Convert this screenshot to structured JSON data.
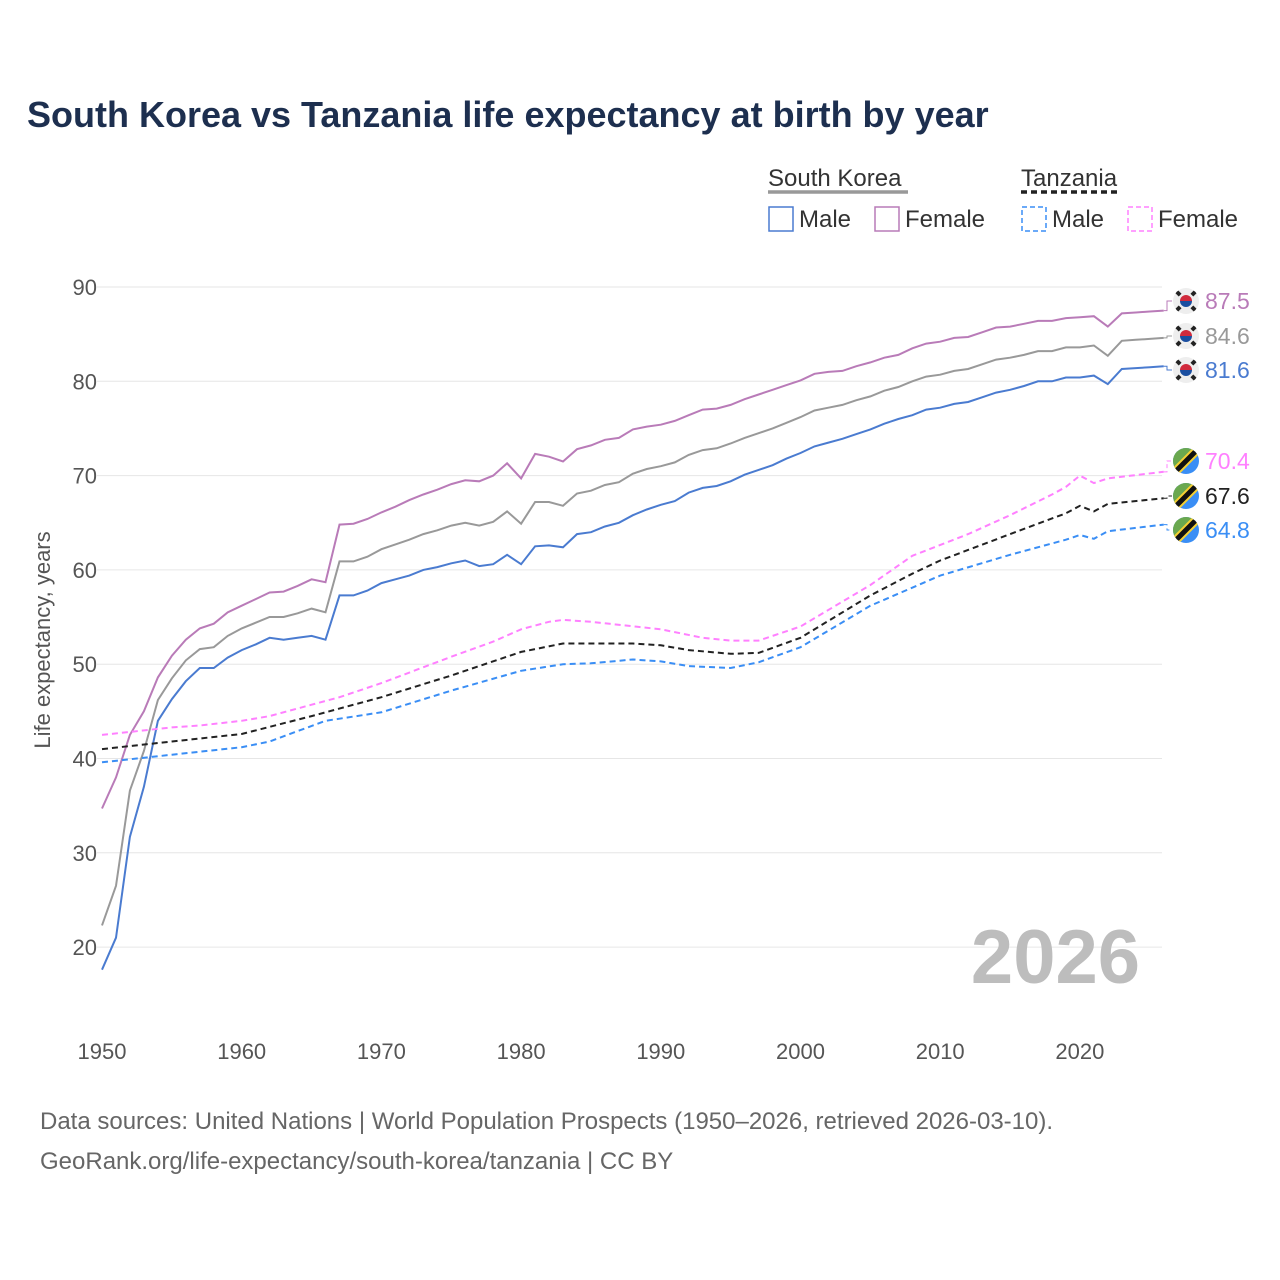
{
  "title": "South Korea vs Tanzania life expectancy at birth by year",
  "footer": {
    "line1": "Data sources: United Nations | World Population Prospects (1950–2026, retrieved 2026-03-10).",
    "line2": "GeoRank.org/life-expectancy/south-korea/tanzania | CC BY"
  },
  "legend": {
    "groups": [
      {
        "name": "South Korea",
        "line_color": "#999999",
        "dashed": false,
        "items": [
          {
            "label": "Male",
            "color": "#4a7bd0"
          },
          {
            "label": "Female",
            "color": "#b97bb8"
          }
        ]
      },
      {
        "name": "Tanzania",
        "line_color": "#222222",
        "dashed": true,
        "items": [
          {
            "label": "Male",
            "color": "#3a8ef5"
          },
          {
            "label": "Female",
            "color": "#ff80ff"
          }
        ]
      }
    ]
  },
  "watermark_year": "2026",
  "chart_data": {
    "type": "line",
    "title": "South Korea vs Tanzania life expectancy at birth by year",
    "xlabel": "",
    "ylabel": "Life expectancy, years",
    "xlim": [
      1950,
      2026
    ],
    "ylim": [
      20,
      90
    ],
    "xticks": [
      "1950",
      "1960",
      "1970",
      "1980",
      "1990",
      "2000",
      "2010",
      "2020"
    ],
    "yticks": [
      "20",
      "30",
      "40",
      "50",
      "60",
      "70",
      "80",
      "90"
    ],
    "grid": true,
    "legend_position": "top-right",
    "series": [
      {
        "name": "South Korea Female",
        "country": "south-korea",
        "color": "#b97bb8",
        "dashed": false,
        "end_label": "87.5",
        "x_start": 1950,
        "y": [
          34.7,
          38,
          42.5,
          45,
          48.6,
          50.9,
          52.6,
          53.8,
          54.3,
          55.5,
          56.2,
          56.9,
          57.6,
          57.7,
          58.3,
          59,
          58.7,
          64.8,
          64.9,
          65.4,
          66.1,
          66.7,
          67.4,
          68,
          68.5,
          69.1,
          69.5,
          69.4,
          70,
          71.3,
          69.7,
          72.3,
          72,
          71.5,
          72.8,
          73.2,
          73.8,
          74,
          74.9,
          75.2,
          75.4,
          75.8,
          76.4,
          77,
          77.1,
          77.5,
          78.1,
          78.6,
          79.1,
          79.6,
          80.1,
          80.8,
          81,
          81.1,
          81.6,
          82,
          82.5,
          82.8,
          83.5,
          84,
          84.2,
          84.6,
          84.7,
          85.2,
          85.7,
          85.8,
          86.1,
          86.4,
          86.4,
          86.7,
          86.8,
          86.9,
          85.8,
          87.2,
          87.3,
          87.4,
          87.5
        ]
      },
      {
        "name": "South Korea Total",
        "country": "south-korea",
        "color": "#999999",
        "dashed": false,
        "end_label": "84.6",
        "x_start": 1950,
        "y": [
          22.3,
          26.5,
          36.6,
          40.8,
          46.2,
          48.5,
          50.4,
          51.6,
          51.8,
          53,
          53.8,
          54.4,
          55,
          55,
          55.4,
          55.9,
          55.5,
          60.9,
          60.9,
          61.4,
          62.2,
          62.7,
          63.2,
          63.8,
          64.2,
          64.7,
          65,
          64.7,
          65.1,
          66.2,
          64.9,
          67.2,
          67.2,
          66.8,
          68.1,
          68.4,
          69,
          69.3,
          70.2,
          70.7,
          71,
          71.4,
          72.2,
          72.7,
          72.9,
          73.4,
          74,
          74.5,
          75,
          75.6,
          76.2,
          76.9,
          77.2,
          77.5,
          78,
          78.4,
          79,
          79.4,
          80,
          80.5,
          80.7,
          81.1,
          81.3,
          81.8,
          82.3,
          82.5,
          82.8,
          83.2,
          83.2,
          83.6,
          83.6,
          83.8,
          82.7,
          84.3,
          84.4,
          84.5,
          84.6
        ]
      },
      {
        "name": "South Korea Male",
        "country": "south-korea",
        "color": "#4a7bd0",
        "dashed": false,
        "end_label": "81.6",
        "x_start": 1950,
        "y": [
          17.6,
          21,
          31.7,
          37,
          44,
          46.3,
          48.2,
          49.6,
          49.6,
          50.7,
          51.5,
          52.1,
          52.8,
          52.6,
          52.8,
          53,
          52.6,
          57.3,
          57.3,
          57.8,
          58.6,
          59,
          59.4,
          60,
          60.3,
          60.7,
          61,
          60.4,
          60.6,
          61.6,
          60.6,
          62.5,
          62.6,
          62.4,
          63.8,
          64,
          64.6,
          65,
          65.8,
          66.4,
          66.9,
          67.3,
          68.2,
          68.7,
          68.9,
          69.4,
          70.1,
          70.6,
          71.1,
          71.8,
          72.4,
          73.1,
          73.5,
          73.9,
          74.4,
          74.9,
          75.5,
          76,
          76.4,
          77,
          77.2,
          77.6,
          77.8,
          78.3,
          78.8,
          79.1,
          79.5,
          80,
          80,
          80.4,
          80.4,
          80.6,
          79.7,
          81.3,
          81.4,
          81.5,
          81.6
        ]
      },
      {
        "name": "Tanzania Female",
        "country": "tanzania",
        "color": "#ff80ff",
        "dashed": true,
        "end_label": "70.4",
        "x": [
          1950,
          1955,
          1957,
          1960,
          1962,
          1965,
          1967,
          1970,
          1975,
          1978,
          1980,
          1982,
          1983,
          1985,
          1990,
          1993,
          1995,
          1997,
          2000,
          2005,
          2008,
          2012,
          2015,
          2018,
          2019,
          2020,
          2021,
          2022,
          2026
        ],
        "y": [
          42.5,
          43.3,
          43.5,
          44,
          44.5,
          45.7,
          46.5,
          48,
          50.8,
          52.4,
          53.7,
          54.5,
          54.7,
          54.5,
          53.7,
          52.8,
          52.5,
          52.5,
          54,
          58.4,
          61.5,
          63.8,
          65.8,
          68,
          68.8,
          70,
          69.2,
          69.7,
          70.4
        ]
      },
      {
        "name": "Tanzania Total",
        "country": "tanzania",
        "color": "#222222",
        "dashed": true,
        "end_label": "67.6",
        "x": [
          1950,
          1955,
          1960,
          1965,
          1970,
          1975,
          1980,
          1983,
          1988,
          1990,
          1992,
          1995,
          1997,
          2000,
          2005,
          2008,
          2010,
          2015,
          2019,
          2020,
          2021,
          2022,
          2026
        ],
        "y": [
          41,
          41.8,
          42.6,
          44.5,
          46.5,
          48.8,
          51.3,
          52.2,
          52.2,
          52,
          51.5,
          51.1,
          51.2,
          52.8,
          57.3,
          59.6,
          61,
          63.8,
          66,
          66.8,
          66.2,
          67,
          67.6
        ]
      },
      {
        "name": "Tanzania Male",
        "country": "tanzania",
        "color": "#3a8ef5",
        "dashed": true,
        "end_label": "64.8",
        "x": [
          1950,
          1955,
          1960,
          1962,
          1966,
          1970,
          1975,
          1980,
          1983,
          1985,
          1988,
          1990,
          1992,
          1995,
          1997,
          2000,
          2005,
          2010,
          2015,
          2019,
          2020,
          2021,
          2022,
          2026
        ],
        "y": [
          39.6,
          40.4,
          41.2,
          41.8,
          44,
          44.9,
          47.2,
          49.3,
          50,
          50.1,
          50.5,
          50.3,
          49.8,
          49.6,
          50.2,
          51.8,
          56.2,
          59.4,
          61.6,
          63.2,
          63.7,
          63.3,
          64.1,
          64.8
        ]
      }
    ]
  }
}
